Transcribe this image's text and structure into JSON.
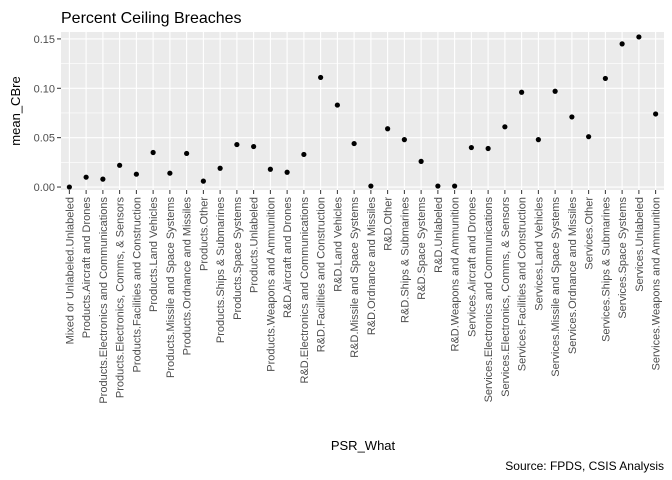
{
  "chart_data": {
    "type": "scatter",
    "title": "Percent Ceiling Breaches",
    "xlabel": "PSR_What",
    "ylabel": "mean_CBre",
    "caption": "Source: FPDS, CSIS Analysis",
    "ylim": [
      -0.003,
      0.157
    ],
    "yticks": [
      0.0,
      0.05,
      0.1,
      0.15
    ],
    "ytick_labels": [
      "0.00",
      "0.05",
      "0.10",
      "0.15"
    ],
    "grid": true,
    "legend": "none",
    "colors": {
      "panel": "#ebebeb",
      "grid_major": "#ffffff",
      "point": "#000000"
    },
    "categories": [
      "Mixed or Unlabeled.Unlabeled",
      "Products.Aircraft and Drones",
      "Products.Electronics and Communications",
      "Products.Electronics, Comms, & Sensors",
      "Products.Facilities and Construction",
      "Products.Land Vehicles",
      "Products.Missile and Space Systems",
      "Products.Ordnance and Missiles",
      "Products.Other",
      "Products.Ships & Submarines",
      "Products.Space Systems",
      "Products.Unlabeled",
      "Products.Weapons and Ammunition",
      "R&D.Aircraft and Drones",
      "R&D.Electronics and Communications",
      "R&D.Facilities and Construction",
      "R&D.Land Vehicles",
      "R&D.Missile and Space Systems",
      "R&D.Ordnance and Missiles",
      "R&D.Other",
      "R&D.Ships & Submarines",
      "R&D.Space Systems",
      "R&D.Unlabeled",
      "R&D.Weapons and Ammunition",
      "Services.Aircraft and Drones",
      "Services.Electronics and Communications",
      "Services.Electronics, Comms, & Sensors",
      "Services.Facilities and Construction",
      "Services.Land Vehicles",
      "Services.Missile and Space Systems",
      "Services.Ordnance and Missiles",
      "Services.Other",
      "Services.Ships & Submarines",
      "Services.Space Systems",
      "Services.Unlabeled",
      "Services.Weapons and Ammunition"
    ],
    "values": [
      0.0,
      0.01,
      0.008,
      0.022,
      0.013,
      0.035,
      0.014,
      0.034,
      0.006,
      0.019,
      0.043,
      0.041,
      0.018,
      0.015,
      0.033,
      0.111,
      0.083,
      0.044,
      0.001,
      0.059,
      0.048,
      0.026,
      0.001,
      0.001,
      0.04,
      0.039,
      0.061,
      0.096,
      0.048,
      0.097,
      0.071,
      0.051,
      0.11,
      0.145,
      0.152,
      0.074
    ]
  }
}
